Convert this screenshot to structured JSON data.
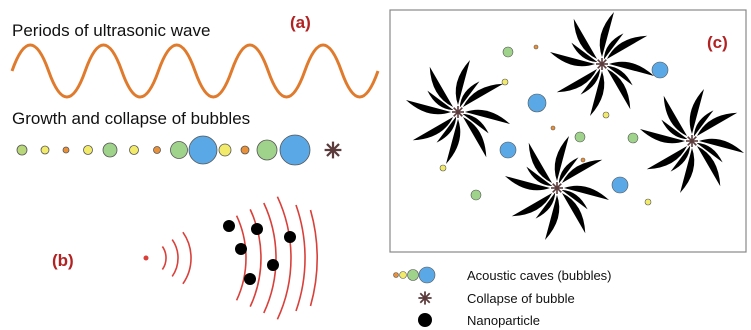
{
  "panel_a": {
    "title": "Periods of ultrasonic wave",
    "tag": "(a)",
    "subtitle": "Growth and collapse of bubbles"
  },
  "panel_b": {
    "tag": "(b)"
  },
  "panel_c": {
    "tag": "(c)"
  },
  "legend": {
    "items": [
      "Acoustic caves (bubbles)",
      "Collapse of bubble",
      "Nanoparticle"
    ]
  }
}
